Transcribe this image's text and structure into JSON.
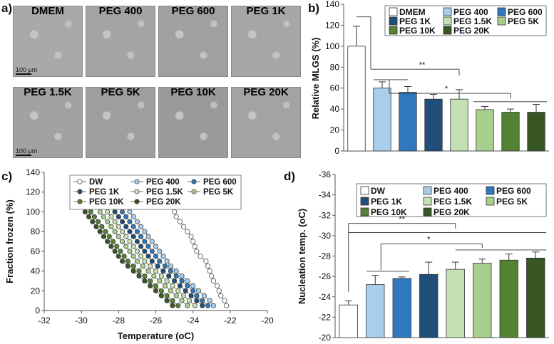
{
  "panels": {
    "a": {
      "letter": "a)",
      "scale_label": "100 μm",
      "tiles": [
        "DMEM",
        "PEG 400",
        "PEG 600",
        "PEG 1K",
        "PEG 1.5K",
        "PEG 5K",
        "PEG 10K",
        "PEG 20K"
      ]
    },
    "b_letter": "b)",
    "c_letter": "c)",
    "d_letter": "d)"
  },
  "colors": {
    "DMEM": "#ffffff",
    "PEG 400": "#a9cdea",
    "PEG 600": "#2f78bd",
    "PEG 1K": "#1f4e79",
    "PEG 1.5K": "#c5e0b3",
    "PEG 5K": "#a8d08d",
    "PEG 10K": "#548235",
    "PEG 20K": "#375623"
  },
  "chart_data": [
    {
      "id": "b",
      "type": "bar",
      "ylabel": "Relative MLGS (%)",
      "ylim": [
        0,
        140
      ],
      "yticks": [
        0,
        20,
        40,
        60,
        80,
        100,
        120,
        140
      ],
      "categories": [
        "DMEM",
        "PEG 400",
        "PEG 600",
        "PEG 1K",
        "PEG 1.5K",
        "PEG 5K",
        "PEG 10K",
        "PEG 20K"
      ],
      "values": [
        100,
        60,
        56,
        49.5,
        49.5,
        39.5,
        37,
        37
      ],
      "errors": [
        19,
        6,
        5.5,
        4.5,
        9,
        3,
        3,
        7.5
      ],
      "legend": [
        "DMEM",
        "PEG 400",
        "PEG 600",
        "PEG 1K",
        "PEG 1.5K",
        "PEG 5K",
        "PEG 10K",
        "PEG 20K"
      ],
      "annotations": [
        "**",
        "*"
      ]
    },
    {
      "id": "c",
      "type": "line",
      "xlabel": "Temperature (oC)",
      "ylabel": "Fraction frozen (%)",
      "xlim": [
        -32,
        -20
      ],
      "ylim": [
        0,
        140
      ],
      "xticks": [
        -32,
        -30,
        -28,
        -26,
        -24,
        -22,
        -20
      ],
      "yticks": [
        0,
        20,
        40,
        60,
        80,
        100,
        120,
        140
      ],
      "legend": [
        "DW",
        "PEG 400",
        "PEG 600",
        "PEG 1K",
        "PEG 1.5K",
        "PEG 5K",
        "PEG 10K",
        "PEG 20K"
      ],
      "y": [
        100,
        95,
        90,
        85,
        80,
        75,
        70,
        65,
        60,
        55,
        50,
        45,
        40,
        35,
        30,
        25,
        20,
        15,
        10,
        5
      ],
      "series": [
        {
          "name": "DW",
          "x": [
            -25.0,
            -24.9,
            -24.7,
            -24.5,
            -24.3,
            -24.1,
            -24.0,
            -23.9,
            -23.8,
            -23.6,
            -23.3,
            -23.2,
            -23.1,
            -23.0,
            -22.9,
            -22.7,
            -22.6,
            -22.5,
            -22.3,
            -22.2
          ]
        },
        {
          "name": "PEG 400",
          "x": [
            -27.4,
            -27.2,
            -27.0,
            -26.8,
            -26.6,
            -26.4,
            -26.2,
            -26.0,
            -25.8,
            -25.6,
            -25.4,
            -25.2,
            -24.9,
            -24.6,
            -24.3,
            -24.0,
            -23.7,
            -23.4,
            -23.1,
            -22.9
          ]
        },
        {
          "name": "PEG 600",
          "x": [
            -27.8,
            -27.6,
            -27.4,
            -27.2,
            -27.0,
            -26.8,
            -26.6,
            -26.4,
            -26.2,
            -26.0,
            -25.8,
            -25.5,
            -25.2,
            -24.9,
            -24.6,
            -24.3,
            -24.0,
            -23.8,
            -23.5,
            -23.2
          ]
        },
        {
          "name": "PEG 1K",
          "x": [
            -28.2,
            -28.0,
            -27.8,
            -27.6,
            -27.4,
            -27.2,
            -27.0,
            -26.8,
            -26.6,
            -26.4,
            -26.2,
            -25.9,
            -25.6,
            -25.3,
            -25.0,
            -24.7,
            -24.4,
            -24.1,
            -23.8,
            -23.5
          ]
        },
        {
          "name": "PEG 1.5K",
          "x": [
            -28.6,
            -28.4,
            -28.2,
            -28.0,
            -27.8,
            -27.6,
            -27.4,
            -27.2,
            -27.0,
            -26.8,
            -26.6,
            -26.3,
            -26.0,
            -25.7,
            -25.4,
            -25.1,
            -24.8,
            -24.5,
            -24.2,
            -23.9
          ]
        },
        {
          "name": "PEG 5K",
          "x": [
            -29.0,
            -28.8,
            -28.6,
            -28.4,
            -28.2,
            -28.0,
            -27.8,
            -27.6,
            -27.4,
            -27.2,
            -27.0,
            -26.7,
            -26.4,
            -26.1,
            -25.8,
            -25.5,
            -25.2,
            -24.9,
            -24.6,
            -24.3
          ]
        },
        {
          "name": "PEG 10K",
          "x": [
            -29.5,
            -29.3,
            -29.1,
            -28.9,
            -28.7,
            -28.5,
            -28.3,
            -28.1,
            -27.9,
            -27.7,
            -27.5,
            -27.2,
            -26.9,
            -26.6,
            -26.3,
            -26.0,
            -25.7,
            -25.4,
            -25.1,
            -24.8
          ]
        },
        {
          "name": "PEG 20K",
          "x": [
            -29.8,
            -29.6,
            -29.4,
            -29.2,
            -29.0,
            -28.8,
            -28.6,
            -28.4,
            -28.2,
            -28.0,
            -27.8,
            -27.5,
            -27.2,
            -26.9,
            -26.6,
            -26.3,
            -26.0,
            -25.7,
            -25.4,
            -25.1
          ]
        }
      ]
    },
    {
      "id": "d",
      "type": "bar",
      "ylabel": "Nucleation temp. (oC)",
      "ylim": [
        -20,
        -36
      ],
      "yticks": [
        -20,
        -22,
        -24,
        -26,
        -28,
        -30,
        -32,
        -34,
        -36
      ],
      "categories": [
        "DW",
        "PEG 400",
        "PEG 600",
        "PEG 1K",
        "PEG 1.5K",
        "PEG 5K",
        "PEG 10K",
        "PEG 20K"
      ],
      "values": [
        -23.2,
        -25.2,
        -25.8,
        -26.2,
        -26.7,
        -27.3,
        -27.6,
        -27.8
      ],
      "errors": [
        0.4,
        0.9,
        0.15,
        1.2,
        0.7,
        0.4,
        0.6,
        0.6
      ],
      "legend": [
        "DW",
        "PEG 400",
        "PEG 600",
        "PEG 1K",
        "PEG 1.5K",
        "PEG 5K",
        "PEG 10K",
        "PEG 20K"
      ],
      "annotations": [
        "**",
        "*"
      ]
    }
  ]
}
